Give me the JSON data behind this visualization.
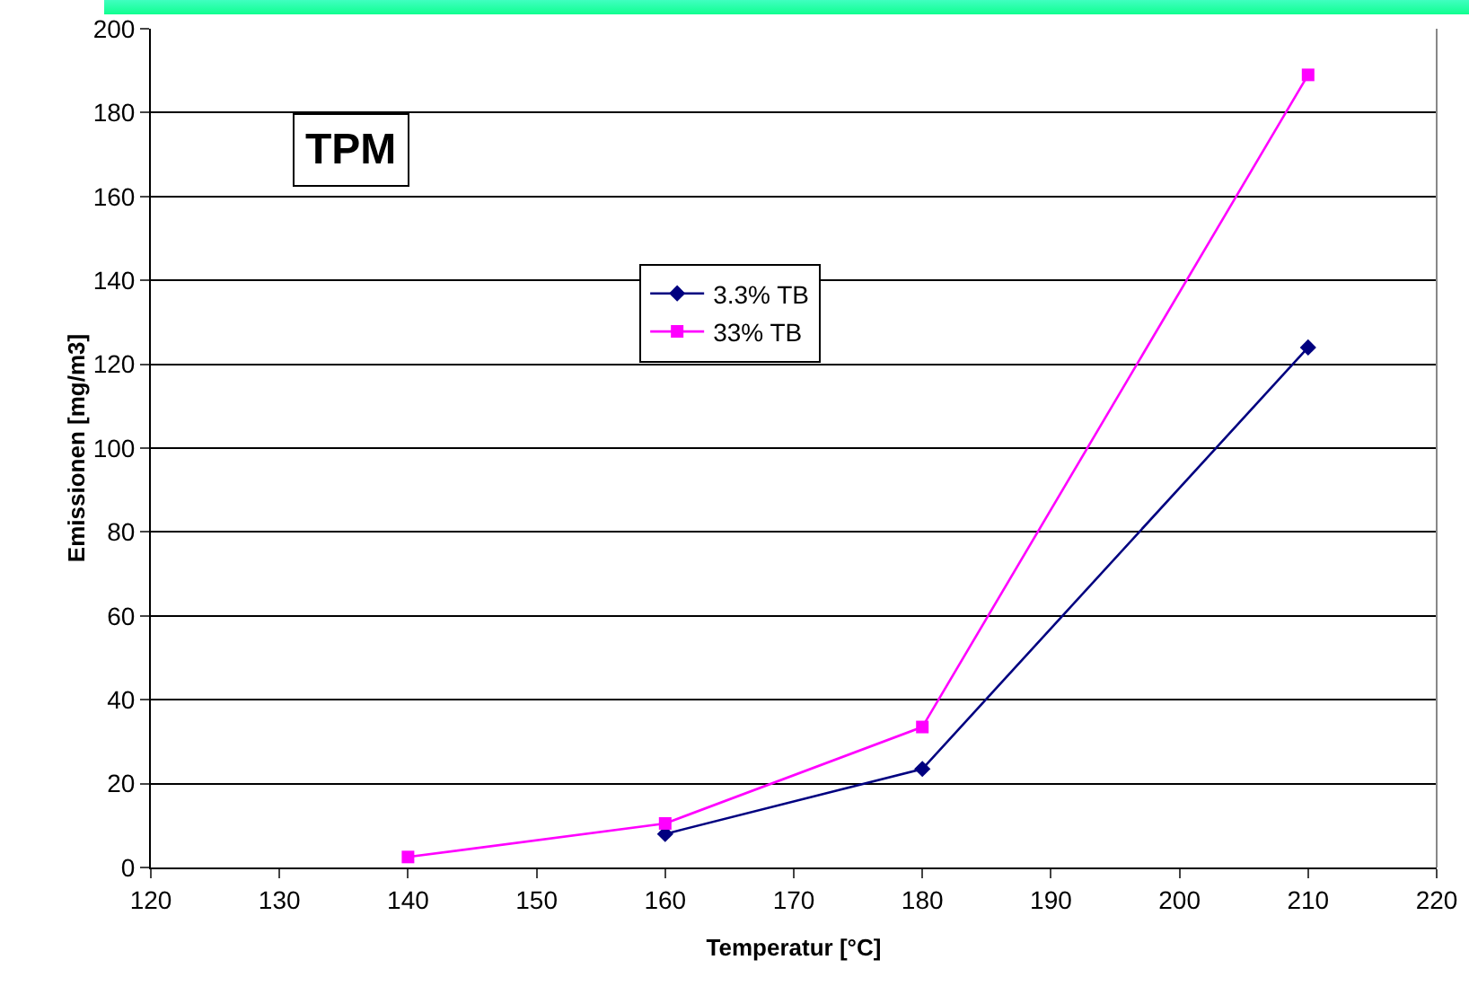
{
  "chart_data": {
    "type": "line",
    "xlabel": "Temperatur [°C]",
    "ylabel": "Emissionen [mg/m3]",
    "annotations": [
      "TPM"
    ],
    "xlim": [
      120,
      220
    ],
    "xticks": [
      120,
      130,
      140,
      150,
      160,
      170,
      180,
      190,
      200,
      210,
      220
    ],
    "ylim": [
      0,
      200
    ],
    "yticks": [
      0,
      20,
      40,
      60,
      80,
      100,
      120,
      140,
      160,
      180,
      200
    ],
    "grid": "y",
    "legend": "top",
    "series": [
      {
        "name": "3.3% TB",
        "color": "#000080",
        "marker": "diamond",
        "x": [
          160,
          180,
          210
        ],
        "values": [
          8,
          23.5,
          124
        ]
      },
      {
        "name": "33% TB",
        "color": "#ff00ff",
        "marker": "square",
        "x": [
          140,
          160,
          180,
          210
        ],
        "values": [
          2.5,
          10.5,
          33.5,
          189
        ]
      }
    ]
  }
}
